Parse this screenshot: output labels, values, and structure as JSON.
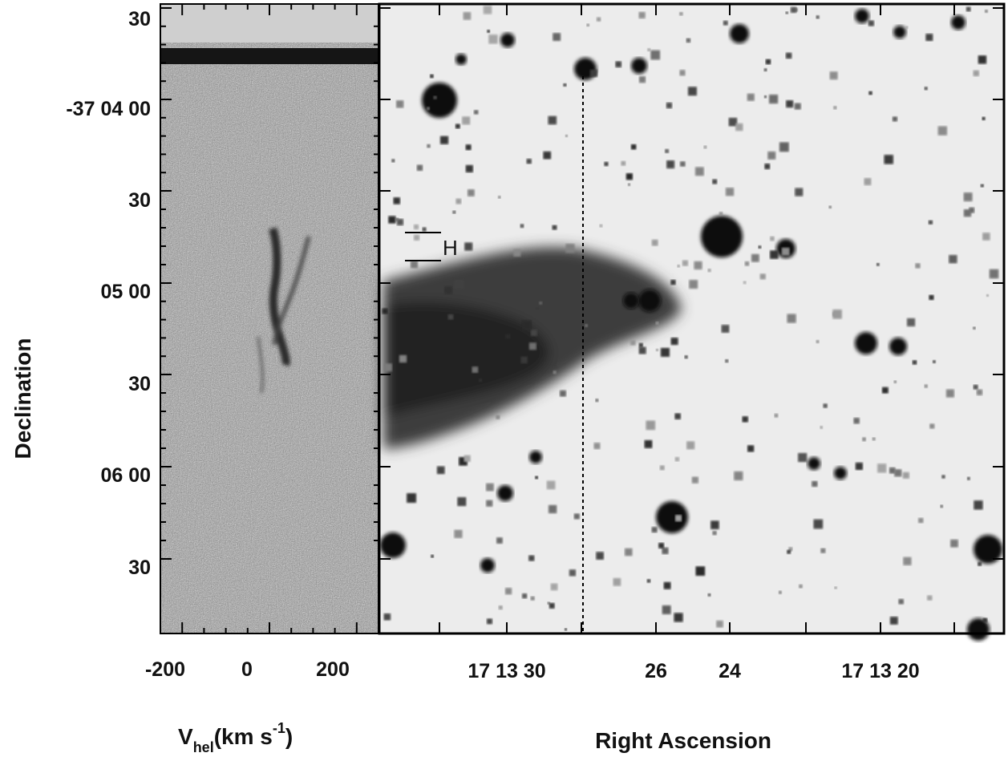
{
  "figure": {
    "left_panel": {
      "xlabel_main": "V",
      "xlabel_sub": "hel",
      "xlabel_units": "(km s",
      "xlabel_exp": "-1",
      "xlabel_close": ")",
      "x_ticks": [
        "-200",
        "0",
        "200"
      ],
      "x_range_kms": [
        -250,
        250
      ]
    },
    "right_panel": {
      "xlabel": "Right Ascension",
      "x_ticks": [
        "17 13 30",
        "26",
        "24",
        "17 13 20"
      ],
      "marker_label": "H"
    },
    "ylabel": "Declination",
    "y_ticks": [
      "30",
      "-37 04 00",
      "30",
      "05 00",
      "30",
      "06 00",
      "30"
    ],
    "colors": {
      "background": "#ffffff",
      "frame": "#000000",
      "spectrum_noise": "#8c8c8c",
      "sky": "#ececec",
      "nebula": "#3a3a3a",
      "star": "#1a1a1a"
    }
  }
}
